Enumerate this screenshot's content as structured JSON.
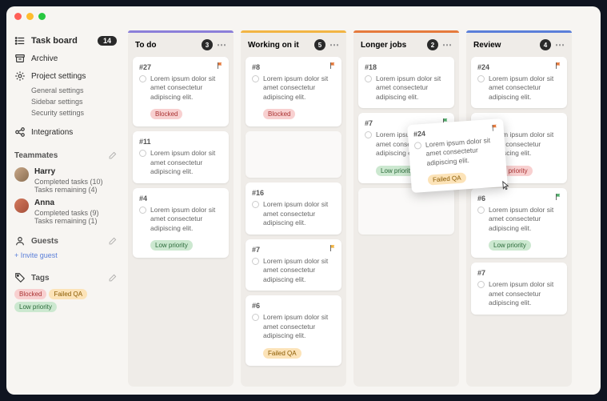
{
  "sidebar": {
    "taskboard": {
      "label": "Task board",
      "count": "14"
    },
    "archive": {
      "label": "Archive"
    },
    "projectSettings": {
      "label": "Project settings"
    },
    "settingsSubs": [
      "General settings",
      "Sidebar settings",
      "Security settings"
    ],
    "integrations": {
      "label": "Integrations"
    },
    "teammates": {
      "header": "Teammates",
      "members": [
        {
          "name": "Harry",
          "completed": "Completed tasks (10)",
          "remaining": "Tasks remaining (4)"
        },
        {
          "name": "Anna",
          "completed": "Completed tasks (9)",
          "remaining": "Tasks remaining (1)"
        }
      ]
    },
    "guests": {
      "header": "Guests",
      "invite": "+ Invite guest"
    },
    "tags": {
      "header": "Tags",
      "items": [
        {
          "label": "Blocked",
          "cls": "blocked"
        },
        {
          "label": "Failed QA",
          "cls": "failedqa"
        },
        {
          "label": "Low priority",
          "cls": "lowpri"
        }
      ]
    }
  },
  "columns": [
    {
      "title": "To do",
      "count": "3",
      "stripe": "#8b7fd9",
      "cards": [
        {
          "id": "#27",
          "flag": "#e57a3c",
          "text": "Lorem ipsum dolor sit amet consectetur adipiscing elit.",
          "tags": [
            {
              "label": "Blocked",
              "cls": "blocked"
            }
          ]
        },
        {
          "id": "#11",
          "text": "Lorem ipsum dolor sit amet consectetur adipiscing elit."
        },
        {
          "id": "#4",
          "text": "Lorem ipsum dolor sit amet consectetur adipiscing elit.",
          "tags": [
            {
              "label": "Low priority",
              "cls": "lowpri"
            }
          ]
        }
      ]
    },
    {
      "title": "Working on it",
      "count": "5",
      "stripe": "#f2b544",
      "cards": [
        {
          "id": "#8",
          "flag": "#e57a3c",
          "text": "Lorem ipsum dolor sit amet consectetur adipiscing elit.",
          "tags": [
            {
              "label": "Blocked",
              "cls": "blocked"
            }
          ]
        },
        {
          "id": "",
          "placeholder": true,
          "h": 58
        },
        {
          "id": "#16",
          "text": "Lorem ipsum dolor sit amet consectetur adipiscing elit."
        },
        {
          "id": "#7",
          "flag": "#f2b544",
          "text": "Lorem ipsum dolor sit amet consectetur adipiscing elit."
        },
        {
          "id": "#6",
          "text": "Lorem ipsum dolor sit amet consectetur adipiscing elit.",
          "tags": [
            {
              "label": "Failed QA",
              "cls": "failedqa"
            }
          ]
        }
      ]
    },
    {
      "title": "Longer jobs",
      "count": "2",
      "stripe": "#e57a3c",
      "cards": [
        {
          "id": "#18",
          "text": "Lorem ipsum dolor sit amet consectetur adipiscing elit."
        },
        {
          "id": "#7",
          "flag": "#4fae6a",
          "text": "Lorem ipsum dolor sit amet consectetur adipiscing elit.",
          "tags": [
            {
              "label": "Low priority",
              "cls": "lowpri"
            }
          ]
        },
        {
          "id": "",
          "placeholder": true,
          "h": 58
        }
      ]
    },
    {
      "title": "Review",
      "count": "4",
      "stripe": "#5b7fd9",
      "cards": [
        {
          "id": "#24",
          "flag": "#e57a3c",
          "text": "Lorem ipsum dolor sit amet consectetur adipiscing elit."
        },
        {
          "id": "#16",
          "text": "Lorem ipsum dolor sit amet consectetur adipiscing elit.",
          "tags": [
            {
              "label": "High priority",
              "cls": "highpri"
            }
          ]
        },
        {
          "id": "#6",
          "flag": "#4fae6a",
          "text": "Lorem ipsum dolor sit amet consectetur adipiscing elit.",
          "tags": [
            {
              "label": "Low priority",
              "cls": "lowpri"
            }
          ]
        },
        {
          "id": "#7",
          "text": "Lorem ipsum dolor sit amet consectetur adipiscing elit."
        }
      ]
    }
  ],
  "dragging": {
    "id": "#24",
    "flag": "#e57a3c",
    "text": "Lorem ipsum dolor sit amet consectetur adipiscing elit.",
    "tags": [
      {
        "label": "Failed QA",
        "cls": "failedqa"
      }
    ]
  }
}
